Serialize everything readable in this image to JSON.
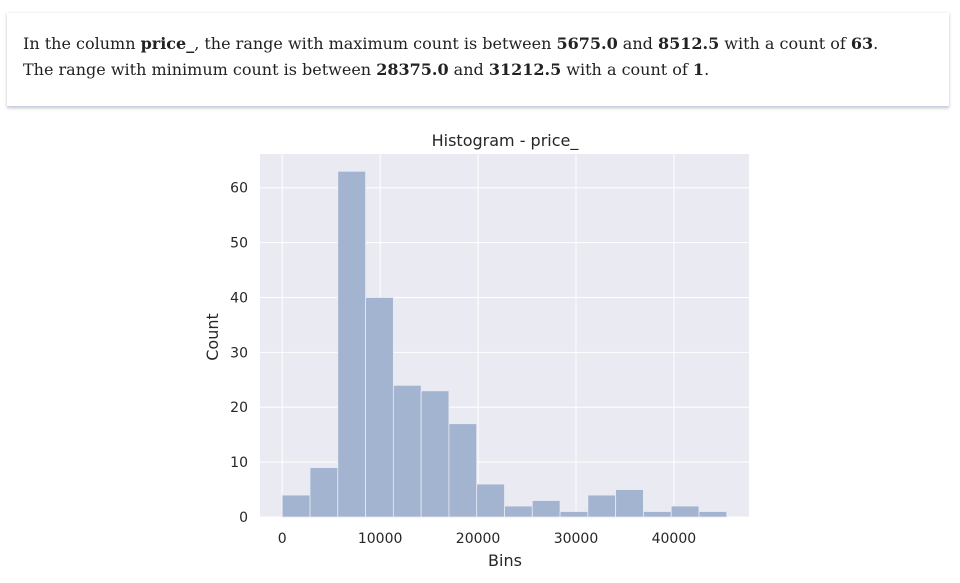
{
  "summary": {
    "line1": {
      "t1": "In the column ",
      "column": "price_",
      "t2": ", the range with maximum count is between ",
      "max_low": "5675.0",
      "t3": " and ",
      "max_high": "8512.5",
      "t4": " with a count of ",
      "max_count": "63",
      "t5": "."
    },
    "line2": {
      "t1": "The range with minimum count is between ",
      "min_low": "28375.0",
      "t2": " and ",
      "min_high": "31212.5",
      "t3": " with a count of ",
      "min_count": "1",
      "t4": "."
    }
  },
  "chart_data": {
    "type": "bar",
    "title": "Histogram - price_",
    "xlabel": "Bins",
    "ylabel": "Count",
    "bin_edges": [
      0,
      2837.5,
      5675.0,
      8512.5,
      11350.0,
      14187.5,
      17025.0,
      19862.5,
      22700.0,
      25537.5,
      28375.0,
      31212.5,
      34050.0,
      36887.5,
      39725.0,
      42562.5,
      45400.0
    ],
    "values": [
      4,
      9,
      63,
      40,
      24,
      23,
      17,
      6,
      2,
      3,
      1,
      4,
      5,
      1,
      2,
      1
    ],
    "xlim": [
      -2270,
      47670
    ],
    "ylim": [
      0,
      66.15
    ],
    "xticks": [
      0,
      10000,
      20000,
      30000,
      40000
    ],
    "yticks": [
      0,
      10,
      20,
      30,
      40,
      50,
      60
    ],
    "grid": true,
    "colors": {
      "bar": "#a3b4d0",
      "background": "#eaeaf2",
      "grid": "#ffffff"
    }
  }
}
